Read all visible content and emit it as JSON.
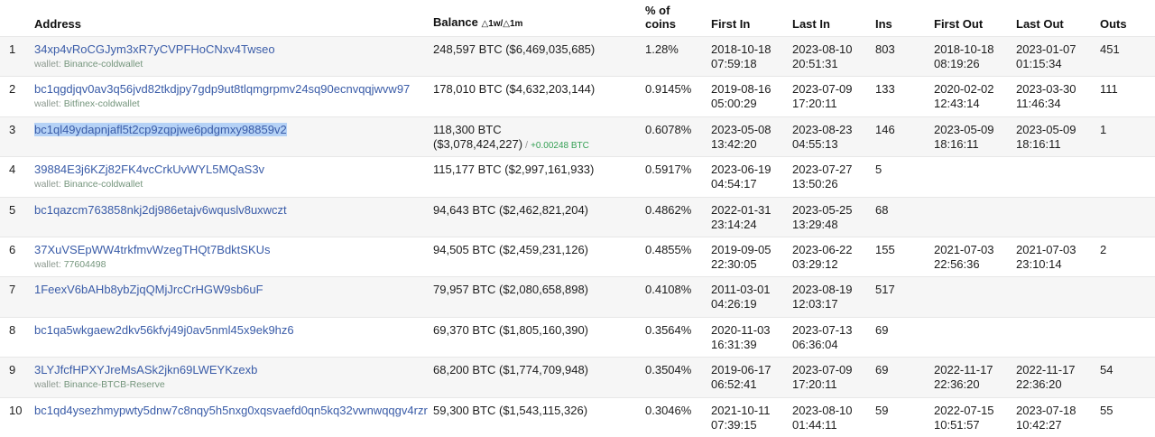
{
  "table": {
    "headers": {
      "address": "Address",
      "balance": "Balance",
      "balance_delta": "△1w/△1m",
      "pct": "% of\ncoins",
      "first_in": "First In",
      "last_in": "Last In",
      "ins": "Ins",
      "first_out": "First Out",
      "last_out": "Last Out",
      "outs": "Outs"
    },
    "wallet_prefix": "wallet: ",
    "delta_separator": "/",
    "rows": [
      {
        "rank": "1",
        "address": "34xp4vRoCGJym3xR7yCVPFHoCNxv4Twseo",
        "wallet": "Binance-coldwallet",
        "selected": false,
        "balance": "248,597 BTC ($6,469,035,685)",
        "pct": "1.28%",
        "first_in": "2018-10-18\n07:59:18",
        "last_in": "2023-08-10\n20:51:31",
        "ins": "803",
        "first_out": "2018-10-18\n08:19:26",
        "last_out": "2023-01-07\n01:15:34",
        "outs": "451"
      },
      {
        "rank": "2",
        "address": "bc1qgdjqv0av3q56jvd82tkdjpy7gdp9ut8tlqmgrpmv24sq90ecnvqqjwvw97",
        "wallet": "Bitfinex-coldwallet",
        "selected": false,
        "balance": "178,010 BTC ($4,632,203,144)",
        "pct": "0.9145%",
        "first_in": "2019-08-16\n05:00:29",
        "last_in": "2023-07-09\n17:20:11",
        "ins": "133",
        "first_out": "2020-02-02\n12:43:14",
        "last_out": "2023-03-30\n11:46:34",
        "outs": "111"
      },
      {
        "rank": "3",
        "address": "bc1ql49ydapnjafl5t2cp9zqpjwe6pdgmxy98859v2",
        "selected": true,
        "balance": "118,300 BTC\n($3,078,424,227)",
        "balance_delta": "+0.00248 BTC",
        "pct": "0.6078%",
        "first_in": "2023-05-08\n13:42:20",
        "last_in": "2023-08-23\n04:55:13",
        "ins": "146",
        "first_out": "2023-05-09\n18:16:11",
        "last_out": "2023-05-09\n18:16:11",
        "outs": "1"
      },
      {
        "rank": "4",
        "address": "39884E3j6KZj82FK4vcCrkUvWYL5MQaS3v",
        "wallet": "Binance-coldwallet",
        "selected": false,
        "balance": "115,177 BTC ($2,997,161,933)",
        "pct": "0.5917%",
        "first_in": "2023-06-19\n04:54:17",
        "last_in": "2023-07-27\n13:50:26",
        "ins": "5"
      },
      {
        "rank": "5",
        "address": "bc1qazcm763858nkj2dj986etajv6wquslv8uxwczt",
        "selected": false,
        "balance": "94,643 BTC ($2,462,821,204)",
        "pct": "0.4862%",
        "first_in": "2022-01-31\n23:14:24",
        "last_in": "2023-05-25\n13:29:48",
        "ins": "68"
      },
      {
        "rank": "6",
        "address": "37XuVSEpWW4trkfmvWzegTHQt7BdktSKUs",
        "wallet": "77604498",
        "selected": false,
        "balance": "94,505 BTC ($2,459,231,126)",
        "pct": "0.4855%",
        "first_in": "2019-09-05\n22:30:05",
        "last_in": "2023-06-22\n03:29:12",
        "ins": "155",
        "first_out": "2021-07-03\n22:56:36",
        "last_out": "2021-07-03\n23:10:14",
        "outs": "2"
      },
      {
        "rank": "7",
        "address": "1FeexV6bAHb8ybZjqQMjJrcCrHGW9sb6uF",
        "selected": false,
        "balance": "79,957 BTC ($2,080,658,898)",
        "pct": "0.4108%",
        "first_in": "2011-03-01\n04:26:19",
        "last_in": "2023-08-19\n12:03:17",
        "ins": "517"
      },
      {
        "rank": "8",
        "address": "bc1qa5wkgaew2dkv56kfvj49j0av5nml45x9ek9hz6",
        "selected": false,
        "balance": "69,370 BTC ($1,805,160,390)",
        "pct": "0.3564%",
        "first_in": "2020-11-03\n16:31:39",
        "last_in": "2023-07-13\n06:36:04",
        "ins": "69"
      },
      {
        "rank": "9",
        "address": "3LYJfcfHPXYJreMsASk2jkn69LWEYKzexb",
        "wallet": "Binance-BTCB-Reserve",
        "selected": false,
        "balance": "68,200 BTC ($1,774,709,948)",
        "pct": "0.3504%",
        "first_in": "2019-06-17\n06:52:41",
        "last_in": "2023-07-09\n17:20:11",
        "ins": "69",
        "first_out": "2022-11-17\n22:36:20",
        "last_out": "2022-11-17\n22:36:20",
        "outs": "54"
      },
      {
        "rank": "10",
        "address": "bc1qd4ysezhmypwty5dnw7c8nqy5h5nxg0xqsvaefd0qn5kq32vwnwqqgv4rzr",
        "selected": false,
        "balance": "59,300 BTC ($1,543,115,326)",
        "pct": "0.3046%",
        "first_in": "2021-10-11\n07:39:15",
        "last_in": "2023-08-10\n01:44:11",
        "ins": "59",
        "first_out": "2022-07-15\n10:51:57",
        "last_out": "2023-07-18\n10:42:27",
        "outs": "55"
      }
    ]
  },
  "colors": {
    "link_blue": "#3a5ca8",
    "wallet_green": "#74957c",
    "delta_green": "#36a055",
    "selection_blue": "#b5d2f6",
    "row_stripe": "#f6f6f6"
  }
}
